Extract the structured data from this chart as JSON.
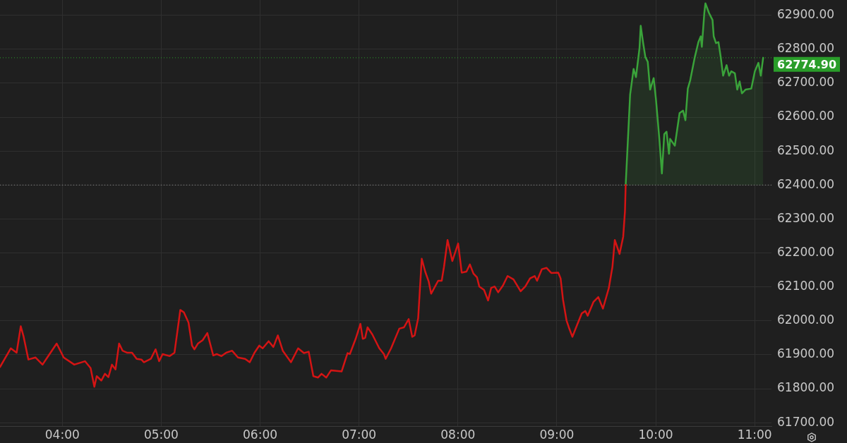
{
  "chart_data": {
    "type": "area",
    "series": [
      {
        "type": "line",
        "color": "#d41414",
        "x": [
          3.37,
          3.479,
          3.538,
          3.58,
          3.609,
          3.657,
          3.729,
          3.8,
          3.871,
          3.943,
          4.014,
          4.121,
          4.229,
          4.286,
          4.324,
          4.348,
          4.395,
          4.431,
          4.466,
          4.502,
          4.538,
          4.574,
          4.609,
          4.657,
          4.705,
          4.752,
          4.8,
          4.824,
          4.895,
          4.943,
          4.979,
          5.014,
          5.086,
          5.134,
          5.193,
          5.229,
          5.276,
          5.312,
          5.336,
          5.371,
          5.419,
          5.466,
          5.526,
          5.561,
          5.609,
          5.657,
          5.716,
          5.776,
          5.848,
          5.895,
          5.943,
          5.991,
          6.026,
          6.086,
          6.134,
          6.179,
          6.229,
          6.312,
          6.384,
          6.443,
          6.491,
          6.538,
          6.586,
          6.621,
          6.669,
          6.716,
          6.824,
          6.884,
          6.907,
          6.966,
          7.014,
          7.038,
          7.062,
          7.086,
          7.134,
          7.205,
          7.252,
          7.269,
          7.324,
          7.407,
          7.455,
          7.502,
          7.538,
          7.562,
          7.598,
          7.634,
          7.669,
          7.705,
          7.729,
          7.8,
          7.836,
          7.859,
          7.895,
          7.943,
          8.002,
          8.038,
          8.086,
          8.121,
          8.157,
          8.193,
          8.216,
          8.264,
          8.305,
          8.336,
          8.371,
          8.407,
          8.455,
          8.502,
          8.562,
          8.634,
          8.681,
          8.729,
          8.776,
          8.8,
          8.848,
          8.895,
          8.943,
          9.014,
          9.038,
          9.062,
          9.098,
          9.121,
          9.157,
          9.205,
          9.252,
          9.288,
          9.312,
          9.371,
          9.419,
          9.466,
          9.526,
          9.562,
          9.586,
          9.634,
          9.671,
          9.689,
          9.696
        ],
        "values": [
          61864,
          61919,
          61906,
          61984,
          61953,
          61886,
          61892,
          61871,
          61902,
          61933,
          61892,
          61871,
          61881,
          61861,
          61806,
          61837,
          61824,
          61844,
          61834,
          61871,
          61857,
          61933,
          61912,
          61906,
          61906,
          61888,
          61886,
          61878,
          61888,
          61916,
          61881,
          61902,
          61896,
          61906,
          62032,
          62025,
          61995,
          61927,
          61916,
          61933,
          61943,
          61964,
          61898,
          61902,
          61896,
          61906,
          61912,
          61892,
          61888,
          61878,
          61906,
          61927,
          61919,
          61940,
          61923,
          61957,
          61912,
          61878,
          61919,
          61905,
          61909,
          61837,
          61833,
          61844,
          61833,
          61854,
          61851,
          61905,
          61902,
          61947,
          61991,
          61947,
          61950,
          61981,
          61960,
          61919,
          61902,
          61888,
          61919,
          61977,
          61981,
          62005,
          61953,
          61957,
          62008,
          62183,
          62145,
          62115,
          62080,
          62118,
          62118,
          62159,
          62238,
          62176,
          62228,
          62142,
          62145,
          62166,
          62139,
          62128,
          62101,
          62091,
          62060,
          62097,
          62101,
          62084,
          62104,
          62132,
          62122,
          62087,
          62101,
          62125,
          62132,
          62118,
          62152,
          62156,
          62141,
          62142,
          62125,
          62063,
          62001,
          61981,
          61953,
          61988,
          62022,
          62029,
          62015,
          62056,
          62070,
          62036,
          62097,
          62159,
          62238,
          62197,
          62248,
          62324,
          62400
        ]
      },
      {
        "color": "#3aa33a",
        "x": [
          9.696,
          9.741,
          9.776,
          9.8,
          9.836,
          9.848,
          9.871,
          9.895,
          9.919,
          9.943,
          9.979,
          10.002,
          10.038,
          10.062,
          10.086,
          10.109,
          10.134,
          10.145,
          10.193,
          10.241,
          10.276,
          10.3,
          10.324,
          10.348,
          10.395,
          10.431,
          10.455,
          10.466,
          10.491,
          10.502,
          10.538,
          10.574,
          10.586,
          10.609,
          10.634,
          10.657,
          10.681,
          10.716,
          10.741,
          10.764,
          10.8,
          10.824,
          10.848,
          10.871,
          10.907,
          10.966,
          11.002,
          11.038,
          11.062,
          11.086
        ],
        "values": [
          62400,
          62667,
          62742,
          62718,
          62804,
          62869,
          62821,
          62777,
          62763,
          62681,
          62715,
          62653,
          62530,
          62434,
          62550,
          62557,
          62492,
          62536,
          62516,
          62612,
          62619,
          62591,
          62684,
          62708,
          62777,
          62821,
          62838,
          62807,
          62907,
          62935,
          62907,
          62886,
          62838,
          62818,
          62821,
          62777,
          62722,
          62753,
          62722,
          62735,
          62729,
          62681,
          62705,
          62670,
          62681,
          62684,
          62735,
          62760,
          62722,
          62774.9
        ]
      }
    ],
    "xlim": [
      3.37,
      11.17
    ],
    "xticks": [
      {
        "value": 4,
        "label": "04:00"
      },
      {
        "value": 5,
        "label": "05:00"
      },
      {
        "value": 6,
        "label": "06:00"
      },
      {
        "value": 7,
        "label": "07:00"
      },
      {
        "value": 8,
        "label": "08:00"
      },
      {
        "value": 9,
        "label": "09:00"
      },
      {
        "value": 10,
        "label": "10:00"
      },
      {
        "value": 11,
        "label": "11:00"
      }
    ],
    "ylim": [
      61690,
      62945
    ],
    "yticks": [
      {
        "value": 61700,
        "label": "61700.00"
      },
      {
        "value": 61800,
        "label": "61800.00"
      },
      {
        "value": 61900,
        "label": "61900.00"
      },
      {
        "value": 62000,
        "label": "62000.00"
      },
      {
        "value": 62100,
        "label": "62100.00"
      },
      {
        "value": 62200,
        "label": "62200.00"
      },
      {
        "value": 62300,
        "label": "62300.00"
      },
      {
        "value": 62400,
        "label": "62400.00"
      },
      {
        "value": 62500,
        "label": "62500.00"
      },
      {
        "value": 62600,
        "label": "62600.00"
      },
      {
        "value": 62700,
        "label": "62700.00"
      },
      {
        "value": 62800,
        "label": "62800.00"
      },
      {
        "value": 62900,
        "label": "62900.00"
      }
    ],
    "ref_lines": [
      {
        "axis": "y",
        "value": 62400,
        "color": "#8c8c8c",
        "line_style": "dotted"
      },
      {
        "axis": "y",
        "value": 62774.9,
        "label": "62774.90",
        "color": "#2a9d2a",
        "line_style": "dotted"
      }
    ],
    "grid": true
  }
}
